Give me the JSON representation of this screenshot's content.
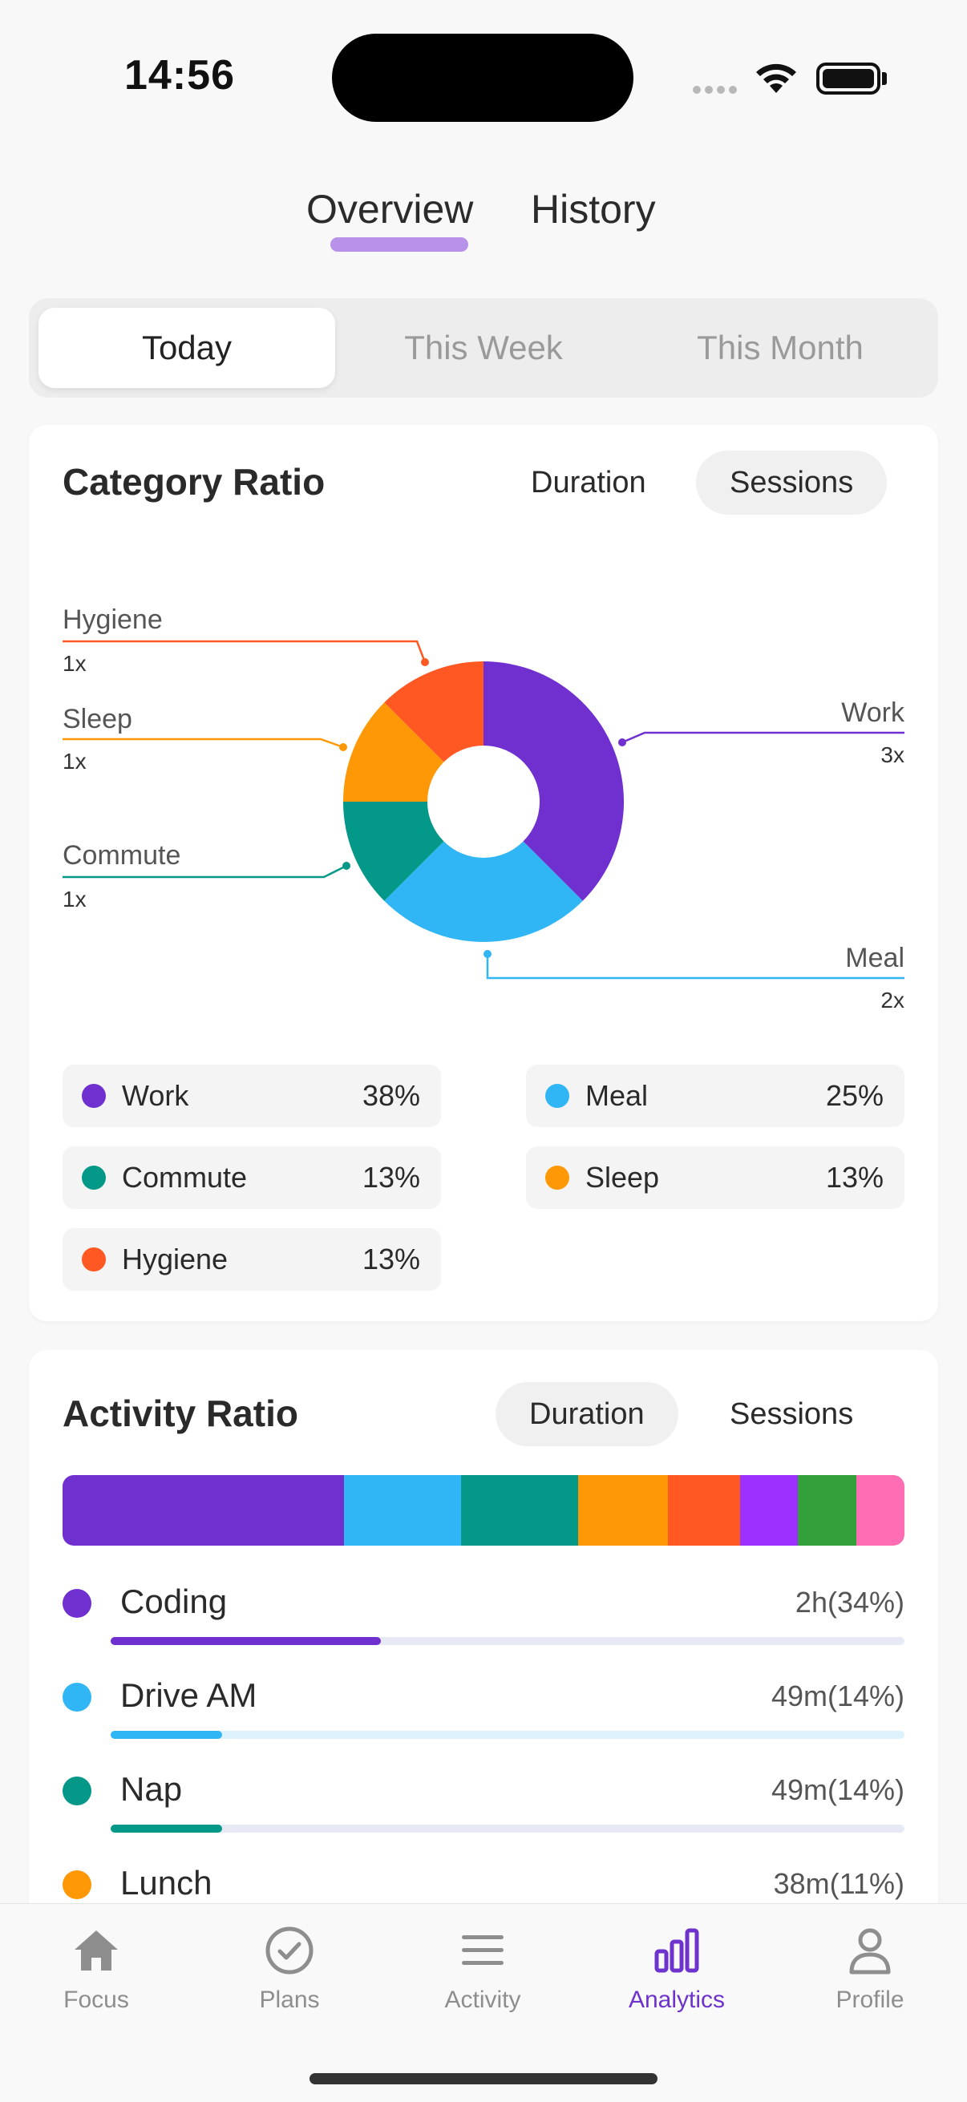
{
  "status_bar": {
    "time": "14:56"
  },
  "top_tabs": {
    "overview": "Overview",
    "history": "History"
  },
  "segments": {
    "today": "Today",
    "week": "This Week",
    "month": "This Month"
  },
  "category_card": {
    "title": "Category Ratio",
    "duration_label": "Duration",
    "sessions_label": "Sessions",
    "selected_mode": "Sessions"
  },
  "chart_data": [
    {
      "type": "pie",
      "title": "Category Ratio",
      "donut": true,
      "slices": [
        {
          "label": "Work",
          "count": "3x",
          "value": 37.5,
          "color": "#7030d0"
        },
        {
          "label": "Meal",
          "count": "2x",
          "value": 25,
          "color": "#30b6f4"
        },
        {
          "label": "Commute",
          "count": "1x",
          "value": 12.5,
          "color": "#039888"
        },
        {
          "label": "Sleep",
          "count": "1x",
          "value": 12.5,
          "color": "#ff9806"
        },
        {
          "label": "Hygiene",
          "count": "1x",
          "value": 12.5,
          "color": "#ff5823"
        }
      ],
      "legend": [
        {
          "name": "Work",
          "pct": "38%",
          "color": "#7030d0"
        },
        {
          "name": "Meal",
          "pct": "25%",
          "color": "#30b6f4"
        },
        {
          "name": "Commute",
          "pct": "13%",
          "color": "#039888"
        },
        {
          "name": "Sleep",
          "pct": "13%",
          "color": "#ff9806"
        },
        {
          "name": "Hygiene",
          "pct": "13%",
          "color": "#ff5823"
        }
      ]
    },
    {
      "type": "bar",
      "stacked": true,
      "title": "Activity Ratio",
      "segments": [
        {
          "value": 33.4,
          "color": "#7030d0"
        },
        {
          "value": 13.9,
          "color": "#30b6f4"
        },
        {
          "value": 13.9,
          "color": "#039888"
        },
        {
          "value": 10.7,
          "color": "#ff9806"
        },
        {
          "value": 8.6,
          "color": "#ff5823"
        },
        {
          "value": 6.8,
          "color": "#9b30ff"
        },
        {
          "value": 7.0,
          "color": "#34a03a"
        },
        {
          "value": 5.7,
          "color": "#ff6eb4"
        }
      ]
    }
  ],
  "activity_card": {
    "title": "Activity Ratio",
    "duration_label": "Duration",
    "sessions_label": "Sessions",
    "selected_mode": "Duration",
    "rows": [
      {
        "name": "Coding",
        "value": "2h(34%)",
        "progress": 0.34,
        "color": "#7030d0",
        "track": "#e7eaf4"
      },
      {
        "name": "Drive AM",
        "value": "49m(14%)",
        "progress": 0.14,
        "color": "#30b6f4",
        "track": "#ddf2fc"
      },
      {
        "name": "Nap",
        "value": "49m(14%)",
        "progress": 0.14,
        "color": "#039888",
        "track": "#e7eaf4"
      },
      {
        "name": "Lunch",
        "value": "38m(11%)",
        "progress": 0.11,
        "color": "#ff9806",
        "track": "#f7eddc"
      }
    ]
  },
  "nav": [
    {
      "label": "Focus",
      "icon": "house-icon",
      "active": false
    },
    {
      "label": "Plans",
      "icon": "check-circle-icon",
      "active": false
    },
    {
      "label": "Activity",
      "icon": "list-icon",
      "active": false
    },
    {
      "label": "Analytics",
      "icon": "bar-chart-icon",
      "active": true
    },
    {
      "label": "Profile",
      "icon": "person-icon",
      "active": false
    }
  ]
}
